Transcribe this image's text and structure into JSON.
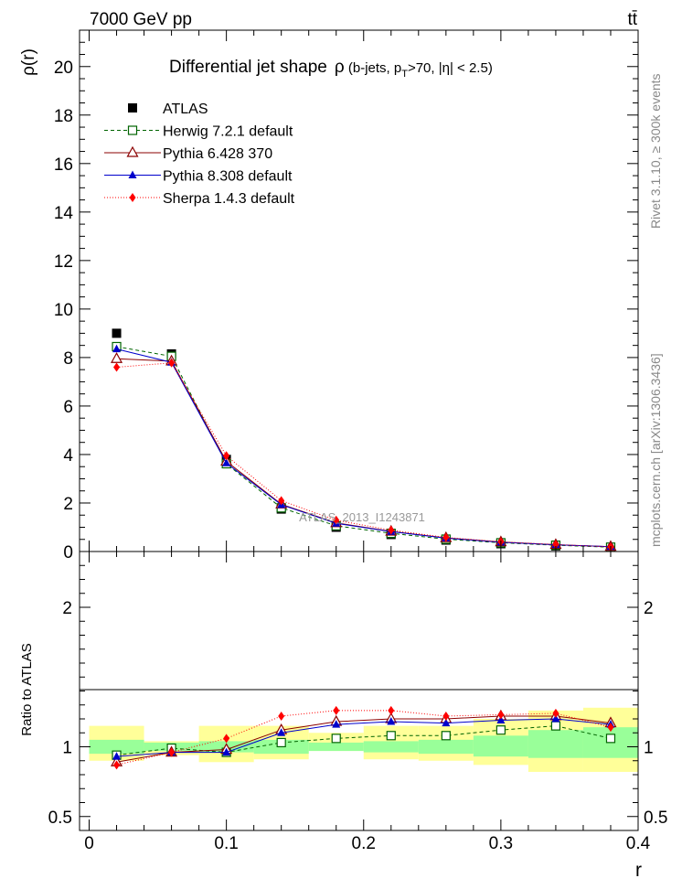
{
  "header": {
    "left": "7000 GeV pp",
    "right": "tt̄"
  },
  "side_labels": {
    "rivet": "Rivet 3.1.10, ≥ 300k events",
    "mcplots": "mcplots.cern.ch [arXiv:1306.3436]"
  },
  "watermark": "ATLAS_2013_I1243871",
  "chart_data": [
    {
      "type": "line",
      "panel": "main",
      "title": "Differential jet shape",
      "title_math": {
        "rho": "ρ",
        "open": " (b-jets, p",
        "sub": "T",
        "close": ">70, |η| < 2.5)"
      },
      "xlabel": "r",
      "ylabel": "ρ(r)",
      "xlim": [
        -0.007,
        0.4
      ],
      "ylim": [
        0,
        21.5
      ],
      "x_ticks": [
        "0",
        "0.1",
        "0.2",
        "0.3",
        "0.4"
      ],
      "y_ticks": [
        "0",
        "2",
        "4",
        "6",
        "8",
        "10",
        "12",
        "14",
        "16",
        "18",
        "20"
      ],
      "x": [
        0.02,
        0.06,
        0.1,
        0.14,
        0.18,
        0.22,
        0.26,
        0.3,
        0.34,
        0.38
      ],
      "series": [
        {
          "name": "ATLAS",
          "color": "#000000",
          "marker": "square-filled",
          "values": [
            9.0,
            8.15,
            3.8,
            1.75,
            1.0,
            0.7,
            0.47,
            0.32,
            0.23,
            0.17
          ]
        },
        {
          "name": "Herwig 7.2.1 default",
          "color": "#006400",
          "marker": "square-open",
          "dash": "4,3",
          "values": [
            8.45,
            8.05,
            3.62,
            1.8,
            1.06,
            0.75,
            0.51,
            0.36,
            0.26,
            0.18
          ]
        },
        {
          "name": "Pythia 6.428 370",
          "color": "#8b0000",
          "marker": "triangle-open",
          "values": [
            7.95,
            7.85,
            3.72,
            1.95,
            1.18,
            0.83,
            0.56,
            0.39,
            0.28,
            0.2
          ]
        },
        {
          "name": "Pythia 8.308 default",
          "color": "#0000cc",
          "marker": "triangle-filled",
          "values": [
            8.35,
            7.8,
            3.65,
            1.93,
            1.16,
            0.82,
            0.55,
            0.38,
            0.28,
            0.2
          ]
        },
        {
          "name": "Sherpa 1.4.3 default",
          "color": "#ff0000",
          "marker": "diamond-filled",
          "dash": "1,2",
          "values": [
            7.6,
            7.78,
            3.95,
            2.1,
            1.29,
            0.88,
            0.58,
            0.4,
            0.29,
            0.19
          ]
        }
      ]
    },
    {
      "type": "line",
      "panel": "ratio",
      "ylabel": "Ratio to ATLAS",
      "ylim": [
        0.4,
        2.4
      ],
      "y_ticks": [
        "0.5",
        "1",
        "2"
      ],
      "y_tick_values": [
        0.5,
        1,
        2
      ],
      "x": [
        0.02,
        0.06,
        0.1,
        0.14,
        0.18,
        0.22,
        0.26,
        0.3,
        0.34,
        0.38
      ],
      "bin_edges": [
        0.0,
        0.04,
        0.08,
        0.12,
        0.16,
        0.2,
        0.24,
        0.28,
        0.32,
        0.36,
        0.4
      ],
      "band_stat": {
        "lo": [
          0.95,
          0.97,
          0.96,
          0.95,
          0.97,
          0.96,
          0.95,
          0.93,
          0.92,
          0.92
        ],
        "hi": [
          1.05,
          1.03,
          1.04,
          1.05,
          1.03,
          1.04,
          1.05,
          1.08,
          1.12,
          1.14
        ]
      },
      "band_total": {
        "lo": [
          0.9,
          0.94,
          0.89,
          0.91,
          0.97,
          0.91,
          0.9,
          0.87,
          0.82,
          0.82
        ],
        "hi": [
          1.15,
          1.04,
          1.15,
          1.15,
          1.1,
          1.15,
          1.15,
          1.2,
          1.26,
          1.28
        ]
      },
      "series": [
        {
          "name": "Herwig 7.2.1 default",
          "values": [
            0.94,
            0.99,
            0.96,
            1.03,
            1.06,
            1.08,
            1.08,
            1.12,
            1.15,
            1.06
          ]
        },
        {
          "name": "Pythia 6.428 370",
          "values": [
            0.89,
            0.96,
            0.98,
            1.12,
            1.18,
            1.2,
            1.2,
            1.22,
            1.22,
            1.17
          ]
        },
        {
          "name": "Pythia 8.308 default",
          "values": [
            0.93,
            0.96,
            0.96,
            1.1,
            1.16,
            1.18,
            1.17,
            1.19,
            1.2,
            1.16
          ]
        },
        {
          "name": "Sherpa 1.4.3 default",
          "values": [
            0.87,
            0.96,
            1.06,
            1.22,
            1.26,
            1.26,
            1.22,
            1.23,
            1.24,
            1.14
          ]
        }
      ]
    }
  ]
}
